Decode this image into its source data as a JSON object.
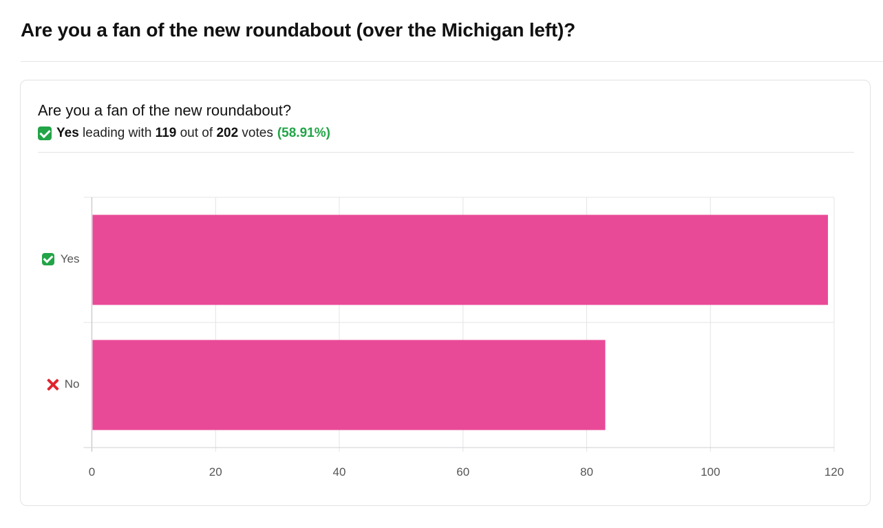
{
  "page": {
    "title": "Are you a fan of the new roundabout (over the Michigan left)?"
  },
  "poll": {
    "question": "Are you a fan of the new roundabout?",
    "summary": {
      "leader": "Yes",
      "text_leading": "leading with",
      "leader_votes": "119",
      "text_out_of": "out of",
      "total_votes": "202",
      "text_votes": "votes",
      "percent": "(58.91%)"
    }
  },
  "colors": {
    "bar": "#e94a97",
    "accent_green": "#22a447",
    "grid": "#e4e4e7"
  },
  "chart_data": {
    "type": "bar",
    "orientation": "horizontal",
    "categories": [
      "Yes",
      "No"
    ],
    "category_icons": [
      "check-icon",
      "cross-icon"
    ],
    "values": [
      119,
      83
    ],
    "xlim": [
      0,
      120
    ],
    "xticks": [
      "0",
      "20",
      "40",
      "60",
      "80",
      "100",
      "120"
    ],
    "grid": true,
    "legend": "none"
  }
}
